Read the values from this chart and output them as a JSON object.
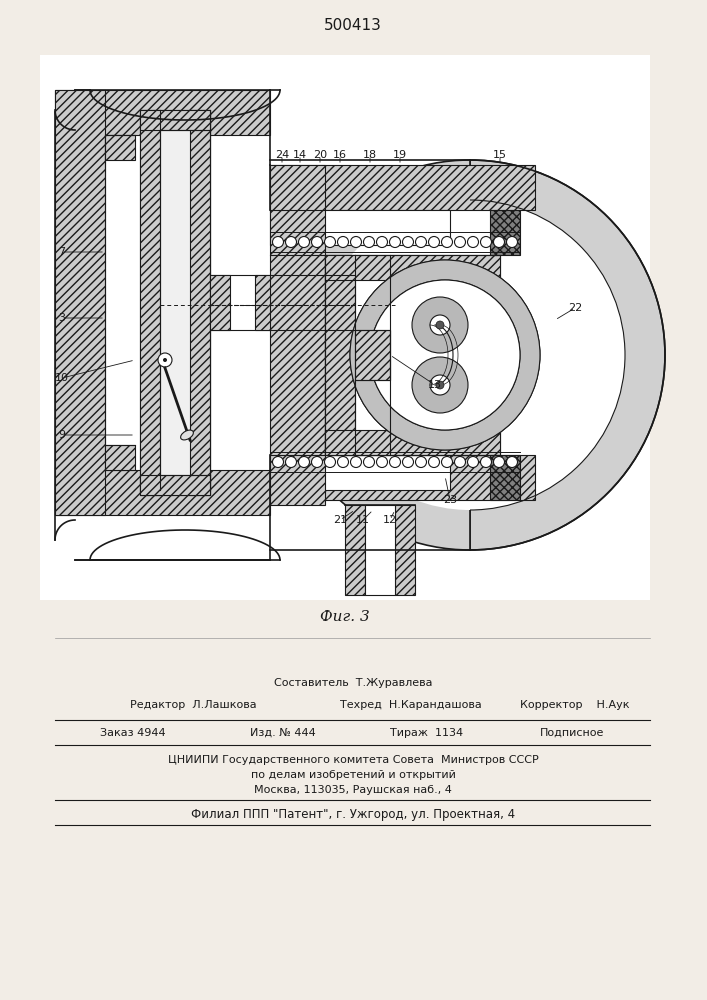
{
  "title": "500413",
  "fig_caption": "Фиг. 3",
  "bg_color": "#f2ede6",
  "paper_color": "#f8f5f0",
  "line_color": "#1a1a1a",
  "title_fontsize": 11,
  "footer": {
    "line1": "Составитель  Т.Журавлева",
    "line2_left": "Редактор  Л.Лашкова",
    "line2_mid": "Техред  Н.Карандашова",
    "line2_right": "Корректор    Н.Аук",
    "line3_a": "Заказ 4944",
    "line3_b": "Изд. № 444",
    "line3_c": "Тираж  1134",
    "line3_d": "Подписное",
    "line4": "ЦНИИПИ Государственного комитета Совета  Министров СССР",
    "line5": "по делам изобретений и открытий",
    "line6": "Москва, 113035, Раушская наб., 4",
    "line7": "Филиал ППП \"Патент\", г. Ужгород, ул. Проектная, 4"
  },
  "hatch_gray": "#b0b0b0",
  "hatch_dark": "#707070",
  "metal_gray": "#d0d0d0",
  "dark_metal": "#909090"
}
